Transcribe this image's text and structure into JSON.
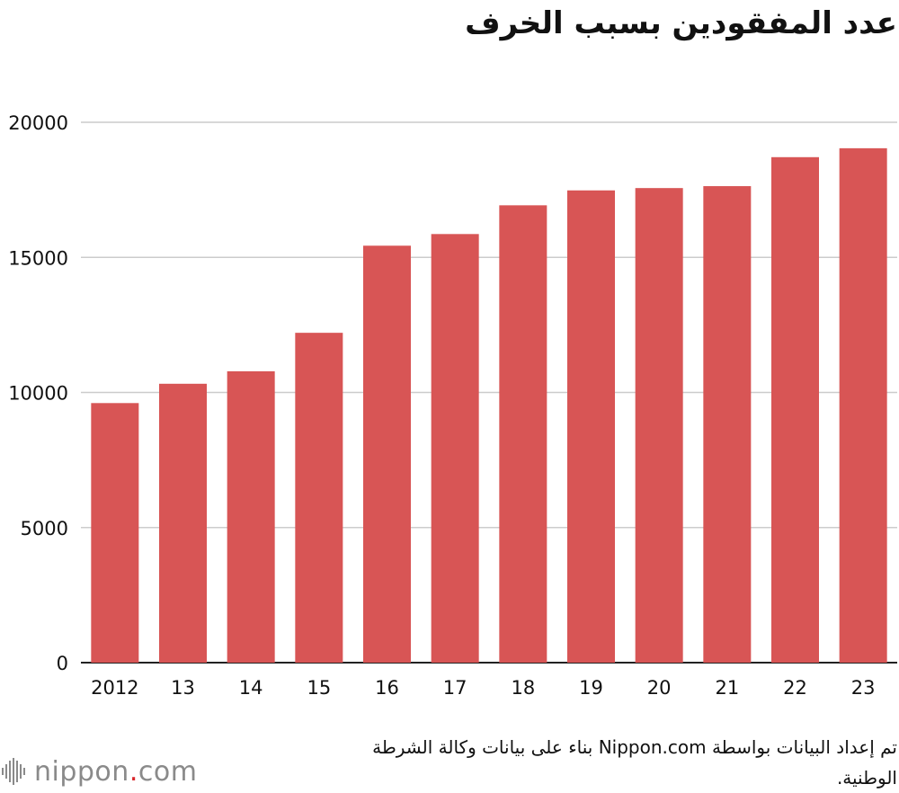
{
  "chart_data": {
    "type": "bar",
    "title": "عدد المفقودين بسبب الخرف",
    "categories": [
      "2012",
      "13",
      "14",
      "15",
      "16",
      "17",
      "18",
      "19",
      "20",
      "21",
      "22",
      "23"
    ],
    "values": [
      9607,
      10322,
      10783,
      12208,
      15432,
      15863,
      16927,
      17479,
      17565,
      17636,
      18709,
      19039
    ],
    "ylim": [
      0,
      20000
    ],
    "yticks": [
      0,
      5000,
      10000,
      15000,
      20000
    ],
    "grid": true,
    "bar_color": "#d85555",
    "xlabel": "",
    "ylabel": ""
  },
  "source_note": "تم إعداد البيانات بواسطة Nippon.com بناء على بيانات وكالة الشرطة الوطنية.",
  "logo": {
    "name": "nippon",
    "dot": ".",
    "suffix": "com",
    "icon": "nippon-sound-bars-icon"
  }
}
